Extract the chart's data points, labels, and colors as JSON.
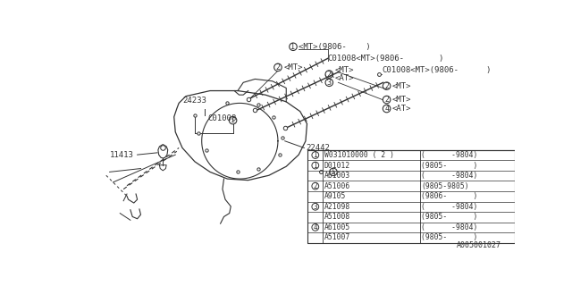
{
  "bg_color": "#ffffff",
  "line_color": "#333333",
  "diagram_id": "A005001027",
  "table_rows": [
    {
      "circle": "1",
      "part": "W031010000 ( 2 )",
      "date": "(      -9804)"
    },
    {
      "circle": "1",
      "part": "D01012",
      "date": "(9805-      )"
    },
    {
      "circle": "",
      "part": "A61003",
      "date": "(      -9804)"
    },
    {
      "circle": "2",
      "part": "A51006",
      "date": "(9805-9805)"
    },
    {
      "circle": "",
      "part": "A9105",
      "date": "(9806-      )"
    },
    {
      "circle": "3",
      "part": "A21098",
      "date": "(      -9804)"
    },
    {
      "circle": "",
      "part": "A51008",
      "date": "(9805-      )"
    },
    {
      "circle": "4",
      "part": "A61005",
      "date": "(      -9804)"
    },
    {
      "circle": "",
      "part": "A51007",
      "date": "(9805-      )"
    }
  ]
}
